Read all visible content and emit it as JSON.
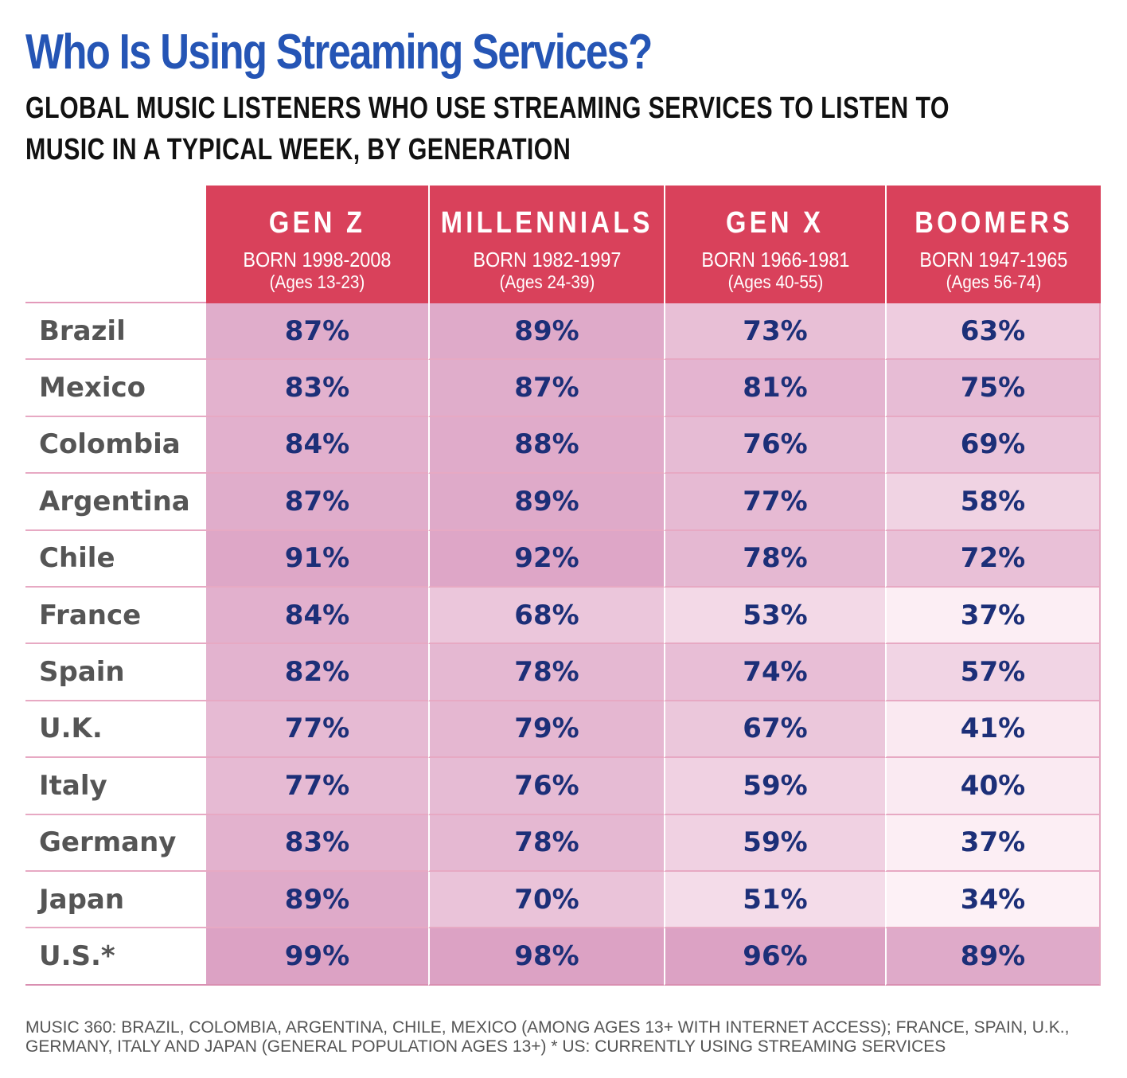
{
  "title": "Who Is Using Streaming Services?",
  "subtitle": "GLOBAL MUSIC LISTENERS WHO USE STREAMING SERVICES TO LISTEN TO MUSIC IN A TYPICAL WEEK, BY GENERATION",
  "footnote_line1": "MUSIC 360: BRAZIL, COLOMBIA, ARGENTINA, CHILE, MEXICO (AMONG AGES 13+ WITH INTERNET ACCESS); FRANCE, SPAIN, U.K.,",
  "footnote_line2": "GERMANY, ITALY AND JAPAN (GENERAL POPULATION AGES 13+)  * US: CURRENTLY USING STREAMING SERVICES",
  "colors": {
    "header_bg": "#d9415b",
    "value_text": "#1c2f78",
    "title_text": "#2555b5",
    "heat_low": "#fdf1f6",
    "heat_high": "#dca2c4"
  },
  "chart_data": {
    "type": "table",
    "columns": [
      {
        "name": "GEN Z",
        "born": "BORN 1998-2008",
        "ages": "(Ages 13-23)"
      },
      {
        "name": "MILLENNIALS",
        "born": "BORN 1982-1997",
        "ages": "(Ages 24-39)"
      },
      {
        "name": "GEN X",
        "born": "BORN 1966-1981",
        "ages": "(Ages 40-55)"
      },
      {
        "name": "BOOMERS",
        "born": "BORN 1947-1965",
        "ages": "(Ages 56-74)"
      }
    ],
    "rows": [
      {
        "country": "Brazil",
        "values": [
          87,
          89,
          73,
          63
        ]
      },
      {
        "country": "Mexico",
        "values": [
          83,
          87,
          81,
          75
        ]
      },
      {
        "country": "Colombia",
        "values": [
          84,
          88,
          76,
          69
        ]
      },
      {
        "country": "Argentina",
        "values": [
          87,
          89,
          77,
          58
        ]
      },
      {
        "country": "Chile",
        "values": [
          91,
          92,
          78,
          72
        ]
      },
      {
        "country": "France",
        "values": [
          84,
          68,
          53,
          37
        ]
      },
      {
        "country": "Spain",
        "values": [
          82,
          78,
          74,
          57
        ]
      },
      {
        "country": "U.K.",
        "values": [
          77,
          79,
          67,
          41
        ]
      },
      {
        "country": "Italy",
        "values": [
          77,
          76,
          59,
          40
        ]
      },
      {
        "country": "Germany",
        "values": [
          83,
          78,
          59,
          37
        ]
      },
      {
        "country": "Japan",
        "values": [
          89,
          70,
          51,
          34
        ]
      },
      {
        "country": "U.S.*",
        "values": [
          99,
          98,
          96,
          89
        ]
      }
    ],
    "value_suffix": "%"
  }
}
